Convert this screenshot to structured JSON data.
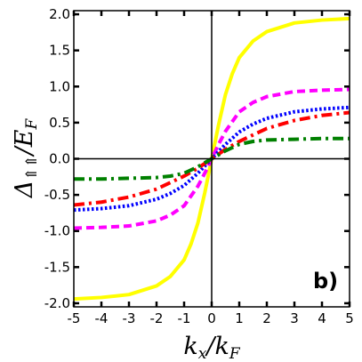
{
  "chart_data": {
    "type": "line",
    "xlabel": {
      "main": "k",
      "sub1": "x",
      "slash": "/k",
      "sub2": "F"
    },
    "ylabel": {
      "main": "Δ",
      "sub": "⇑⇑",
      "slash": "/E",
      "sub2": "F"
    },
    "annotation": "b)",
    "xlim": [
      -5,
      5
    ],
    "ylim": [
      -2.05,
      2.05
    ],
    "x_ticks": [
      -5,
      -4,
      -3,
      -2,
      -1,
      0,
      1,
      2,
      3,
      4,
      5
    ],
    "x_tick_labels": [
      "-5",
      "-4",
      "-3",
      "-2",
      "-1",
      "0",
      "1",
      "2",
      "3",
      "4",
      "5"
    ],
    "y_ticks": [
      -2.0,
      -1.5,
      -1.0,
      -0.5,
      0.0,
      0.5,
      1.0,
      1.5,
      2.0
    ],
    "y_tick_labels": [
      "-2.0",
      "-1.5",
      "-1.0",
      "-0.5",
      "0.0",
      "0.5",
      "1.0",
      "1.5",
      "2.0"
    ],
    "grid": false,
    "reference_lines": {
      "x": 0,
      "y": 0
    },
    "series": [
      {
        "color": "#ffff00",
        "style": "solid",
        "x": [
          -5,
          -4,
          -3,
          -2,
          -1.5,
          -1,
          -0.75,
          -0.5,
          -0.25,
          0,
          0.25,
          0.5,
          0.75,
          1,
          1.5,
          2,
          3,
          4,
          5
        ],
        "y": [
          -1.94,
          -1.92,
          -1.88,
          -1.76,
          -1.63,
          -1.4,
          -1.18,
          -0.89,
          -0.47,
          0,
          0.47,
          0.89,
          1.18,
          1.4,
          1.63,
          1.76,
          1.88,
          1.92,
          1.94
        ]
      },
      {
        "color": "#ff00ff",
        "style": "dashed",
        "x": [
          -5,
          -4,
          -3,
          -2,
          -1.5,
          -1,
          -0.5,
          -0.25,
          0,
          0.25,
          0.5,
          1,
          1.5,
          2,
          3,
          4,
          5
        ],
        "y": [
          -0.96,
          -0.95,
          -0.93,
          -0.86,
          -0.78,
          -0.65,
          -0.38,
          -0.2,
          0,
          0.2,
          0.38,
          0.65,
          0.78,
          0.86,
          0.93,
          0.95,
          0.96
        ]
      },
      {
        "color": "#0000ff",
        "style": "dotted",
        "x": [
          -5,
          -4,
          -3,
          -2,
          -1.5,
          -1,
          -0.5,
          0,
          0.5,
          1,
          1.5,
          2,
          3,
          4,
          5
        ],
        "y": [
          -0.71,
          -0.69,
          -0.65,
          -0.56,
          -0.48,
          -0.37,
          -0.2,
          0,
          0.2,
          0.37,
          0.48,
          0.56,
          0.65,
          0.69,
          0.71
        ]
      },
      {
        "color": "#ff0000",
        "style": "dashdot",
        "x": [
          -5,
          -4,
          -3,
          -2,
          -1,
          -0.5,
          0,
          0.5,
          1,
          2,
          3,
          4,
          5
        ],
        "y": [
          -0.64,
          -0.6,
          -0.53,
          -0.42,
          -0.24,
          -0.13,
          0,
          0.13,
          0.24,
          0.42,
          0.53,
          0.6,
          0.64
        ]
      },
      {
        "color": "#008000",
        "style": "dashdot",
        "x": [
          -5,
          -4,
          -3,
          -2,
          -1.5,
          -1,
          -0.5,
          0,
          0.5,
          1,
          1.5,
          2,
          3,
          4,
          5
        ],
        "y": [
          -0.28,
          -0.28,
          -0.27,
          -0.26,
          -0.24,
          -0.2,
          -0.11,
          0,
          0.11,
          0.2,
          0.24,
          0.26,
          0.27,
          0.28,
          0.28
        ]
      }
    ]
  }
}
